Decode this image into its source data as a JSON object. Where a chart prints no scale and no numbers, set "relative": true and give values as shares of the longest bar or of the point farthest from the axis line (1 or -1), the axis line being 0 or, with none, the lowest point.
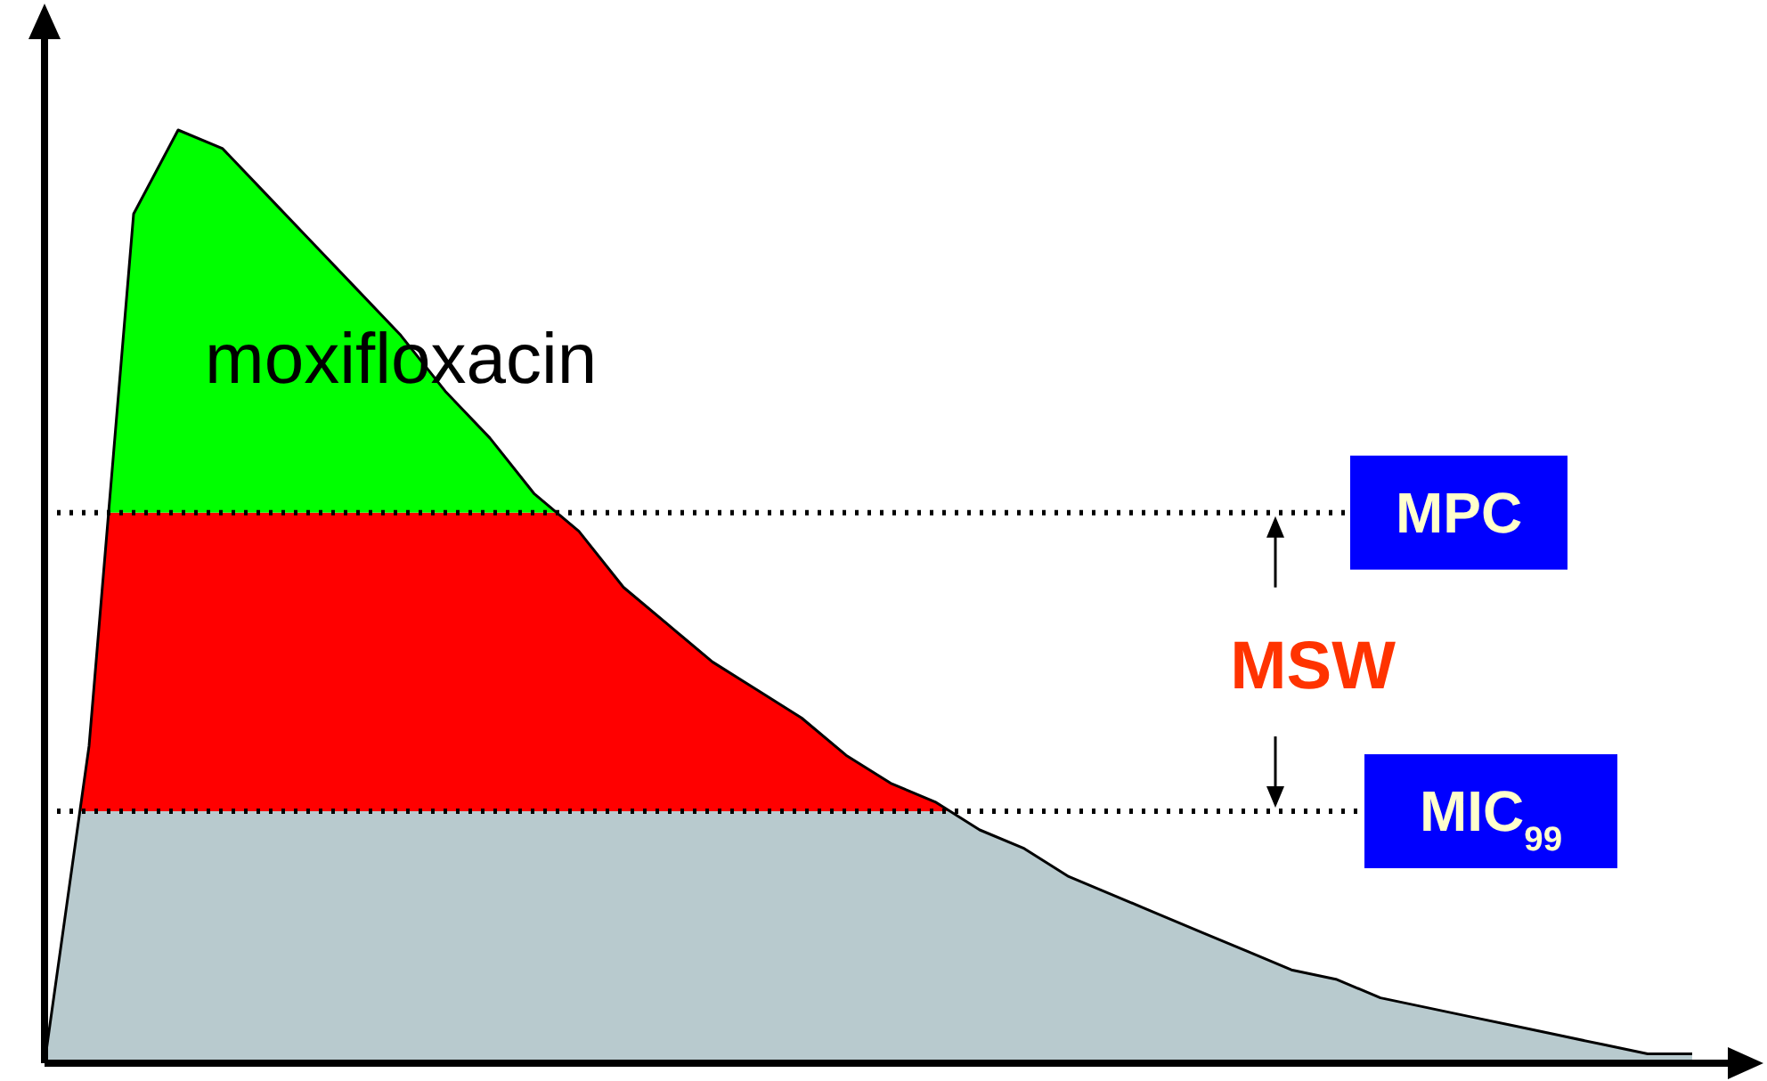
{
  "chart_data": {
    "type": "line",
    "relative": true,
    "legend": false,
    "categories": [
      null,
      null,
      null,
      null,
      null,
      null,
      null,
      null,
      null,
      null,
      null,
      null,
      null,
      null,
      null,
      null,
      null,
      null,
      null,
      null,
      null,
      null,
      null,
      null,
      null,
      null,
      null,
      null,
      null,
      null,
      null,
      null,
      null,
      null,
      null,
      null,
      null,
      null
    ],
    "series": [
      {
        "name": "moxifloxacin",
        "color": "#000000",
        "values": [
          0,
          0.34,
          0.91,
          1,
          0.98,
          0.93,
          0.88,
          0.83,
          0.78,
          0.72,
          0.67,
          0.61,
          0.57,
          0.51,
          0.47,
          0.43,
          0.4,
          0.37,
          0.33,
          0.3,
          0.28,
          0.25,
          0.23,
          0.2,
          0.18,
          0.16,
          0.14,
          0.12,
          0.1,
          0.09,
          0.07,
          0.06,
          0.05,
          0.04,
          0.03,
          0.02,
          0.01,
          0.01
        ]
      }
    ],
    "bands": [
      {
        "axis": "y",
        "from": 0,
        "to": 0.27,
        "color": "#b8cace"
      },
      {
        "axis": "y",
        "from": 0.27,
        "to": 0.59,
        "color": "#ff0000"
      },
      {
        "axis": "y",
        "from": 0.59,
        "to": 1,
        "color": "#00ff00"
      }
    ],
    "ref_lines": [
      {
        "axis": "y",
        "value": 0.59,
        "label": "MPC",
        "line_style": "dotted"
      },
      {
        "axis": "y",
        "value": 0.27,
        "label": "MIC$_{99}$",
        "line_style": "dotted"
      }
    ],
    "annotations": [
      "MSW"
    ]
  }
}
